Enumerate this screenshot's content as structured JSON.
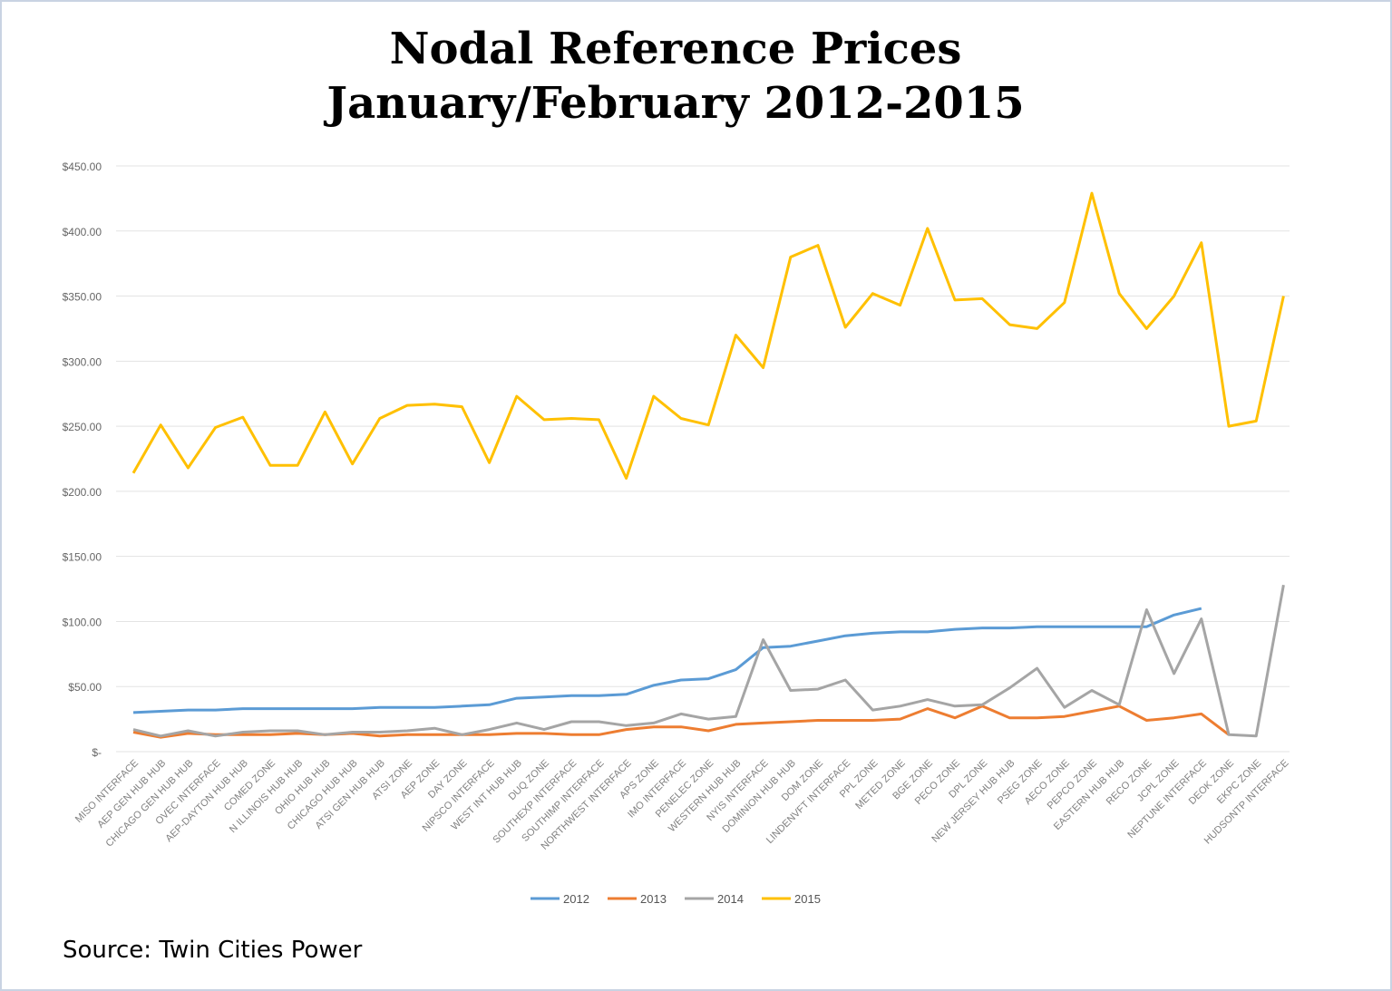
{
  "title_line1": "Nodal Reference Prices",
  "title_line2": "January/February 2012-2015",
  "source": "Source: Twin Cities Power",
  "chart_data": {
    "type": "line",
    "title": "Nodal Reference Prices January/February 2012-2015",
    "xlabel": "",
    "ylabel": "",
    "ylim": [
      0,
      450
    ],
    "yticks": [
      0,
      50,
      100,
      150,
      200,
      250,
      300,
      350,
      400,
      450
    ],
    "ytick_labels": [
      "$-",
      "$50.00",
      "$100.00",
      "$150.00",
      "$200.00",
      "$250.00",
      "$300.00",
      "$350.00",
      "$400.00",
      "$450.00"
    ],
    "grid": true,
    "legend_position": "bottom-center",
    "categories": [
      "MISO INTERFACE",
      "AEP GEN HUB HUB",
      "CHICAGO GEN HUB HUB",
      "OVEC INTERFACE",
      "AEP-DAYTON HUB HUB",
      "COMED ZONE",
      "N ILLINOIS HUB HUB",
      "OHIO HUB HUB",
      "CHICAGO HUB HUB",
      "ATSI GEN HUB HUB",
      "ATSI ZONE",
      "AEP ZONE",
      "DAY ZONE",
      "NIPSCO INTERFACE",
      "WEST INT HUB HUB",
      "DUQ ZONE",
      "SOUTHEXP INTERFACE",
      "SOUTHIMP INTERFACE",
      "NORTHWEST INTERFACE",
      "APS ZONE",
      "IMO INTERFACE",
      "PENELEC ZONE",
      "WESTERN HUB HUB",
      "NYIS INTERFACE",
      "DOMINION HUB HUB",
      "DOM ZONE",
      "LINDENVFT INTERFACE",
      "PPL ZONE",
      "METED ZONE",
      "BGE ZONE",
      "PECO ZONE",
      "DPL ZONE",
      "NEW JERSEY HUB HUB",
      "PSEG ZONE",
      "AECO ZONE",
      "PEPCO ZONE",
      "EASTERN HUB HUB",
      "RECO ZONE",
      "JCPL ZONE",
      "NEPTUNE INTERFACE",
      "DEOK ZONE",
      "EKPC ZONE",
      "HUDSONTP INTERFACE"
    ],
    "series": [
      {
        "name": "2012",
        "color": "#5b9bd5",
        "values": [
          30,
          31,
          32,
          32,
          33,
          33,
          33,
          33,
          33,
          34,
          34,
          34,
          35,
          36,
          41,
          42,
          43,
          43,
          44,
          51,
          55,
          56,
          63,
          80,
          81,
          85,
          89,
          91,
          92,
          92,
          94,
          95,
          95,
          96,
          96,
          96,
          96,
          96,
          105,
          110,
          null,
          null,
          null
        ]
      },
      {
        "name": "2013",
        "color": "#ed7d31",
        "values": [
          15,
          11,
          14,
          13,
          13,
          13,
          14,
          13,
          14,
          12,
          13,
          13,
          13,
          13,
          14,
          14,
          13,
          13,
          17,
          19,
          19,
          16,
          21,
          22,
          23,
          24,
          24,
          24,
          25,
          33,
          26,
          35,
          26,
          26,
          27,
          31,
          35,
          24,
          26,
          29,
          13,
          null,
          null
        ]
      },
      {
        "name": "2014",
        "color": "#a5a5a5",
        "values": [
          17,
          12,
          16,
          12,
          15,
          16,
          16,
          13,
          15,
          15,
          16,
          18,
          13,
          17,
          22,
          17,
          23,
          23,
          20,
          22,
          29,
          25,
          27,
          86,
          47,
          48,
          55,
          32,
          35,
          40,
          35,
          36,
          49,
          64,
          34,
          47,
          36,
          109,
          60,
          102,
          13,
          12,
          128
        ]
      },
      {
        "name": "2015",
        "color": "#ffc000",
        "values": [
          214,
          251,
          218,
          249,
          257,
          220,
          220,
          261,
          221,
          256,
          266,
          267,
          265,
          222,
          273,
          255,
          256,
          255,
          210,
          273,
          256,
          251,
          320,
          295,
          380,
          389,
          326,
          352,
          343,
          402,
          347,
          348,
          328,
          325,
          345,
          429,
          352,
          325,
          350,
          391,
          250,
          254,
          350
        ]
      }
    ]
  }
}
